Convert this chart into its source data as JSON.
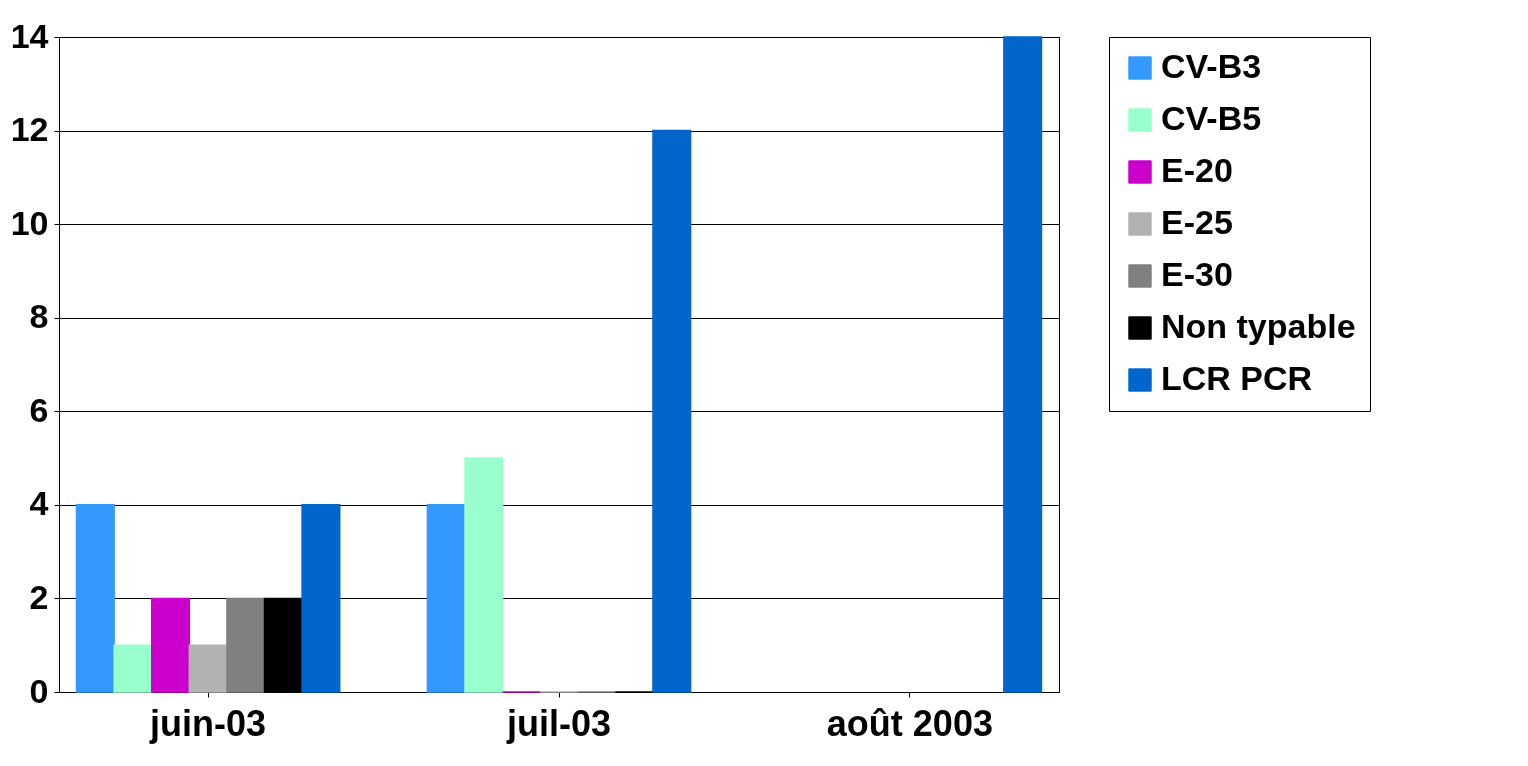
{
  "chart_data": {
    "type": "bar",
    "categories": [
      "juin-03",
      "juil-03",
      "août 2003"
    ],
    "series": [
      {
        "name": "CV-B3",
        "color": "#3399ff",
        "values": [
          4,
          4,
          null
        ]
      },
      {
        "name": "CV-B5",
        "color": "#99ffcc",
        "values": [
          1,
          5,
          null
        ]
      },
      {
        "name": "E-20",
        "color": "#cc00cc",
        "values": [
          2,
          0,
          null
        ]
      },
      {
        "name": "E-25",
        "color": "#b2b2b2",
        "values": [
          1,
          0,
          null
        ]
      },
      {
        "name": "E-30",
        "color": "#808080",
        "values": [
          2,
          0,
          null
        ]
      },
      {
        "name": "Non typable",
        "color": "#000000",
        "values": [
          2,
          0,
          null
        ]
      },
      {
        "name": "LCR PCR",
        "color": "#0066cc",
        "values": [
          4,
          12,
          14
        ]
      }
    ],
    "ylim": [
      0,
      14
    ],
    "yticks": [
      0,
      2,
      4,
      6,
      8,
      10,
      12,
      14
    ],
    "grid": "y",
    "legend": "right"
  }
}
